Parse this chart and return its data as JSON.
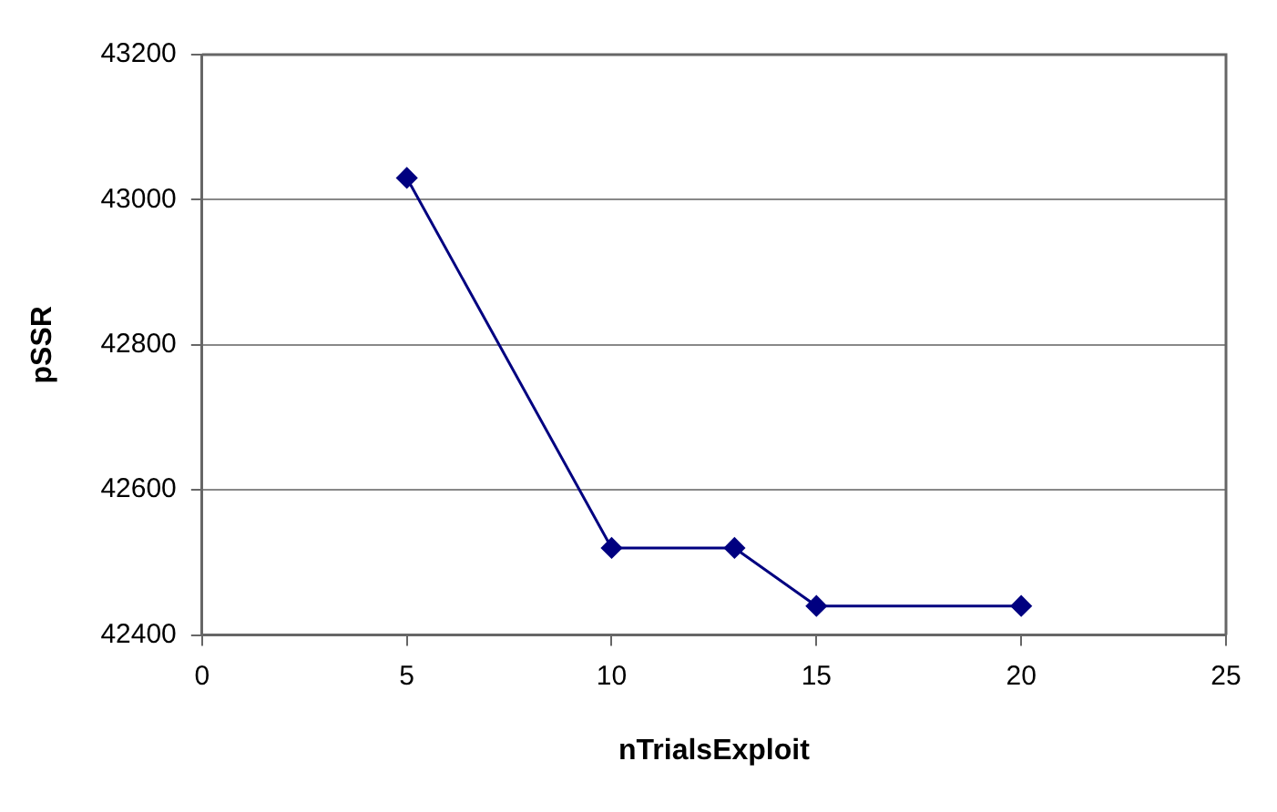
{
  "chart_data": {
    "type": "line",
    "xlabel": "nTrialsExploit",
    "ylabel": "pSSR",
    "x": [
      5,
      10,
      13,
      15,
      20
    ],
    "series": [
      {
        "color": "#000080",
        "values": [
          43030,
          42520,
          42520,
          42440,
          42440
        ]
      }
    ],
    "xlim": [
      0,
      25
    ],
    "xticks": [
      0,
      5,
      10,
      15,
      20,
      25
    ],
    "ylim": [
      42400,
      43200
    ],
    "yticks": [
      42400,
      42600,
      42800,
      43000,
      43200
    ],
    "grid": "y",
    "legend": false,
    "marker": "diamond",
    "line_style": "solid"
  }
}
